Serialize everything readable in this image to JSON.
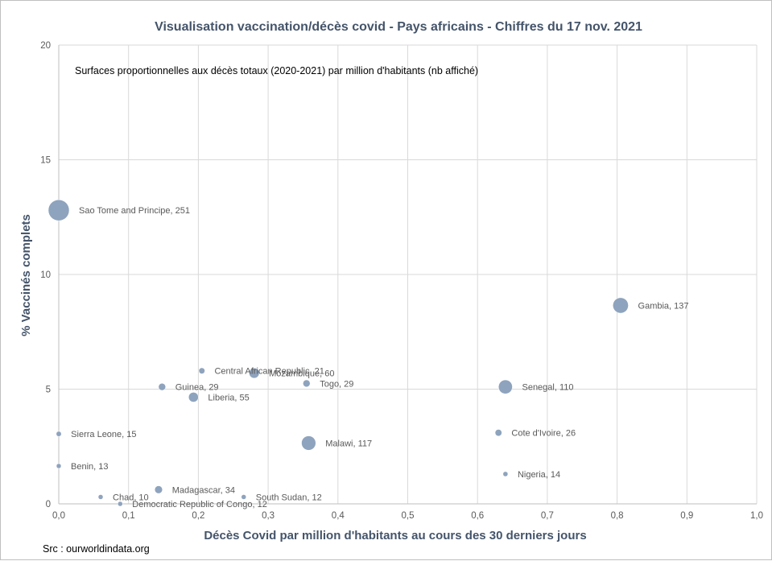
{
  "chart_data": {
    "type": "scatter",
    "title": "Visualisation  vaccination/décès covid - Pays africains - Chiffres du 17  nov. 2021",
    "subtitle": "Surfaces proportionnelles aux décès totaux (2020-2021) par million d'habitants (nb affiché)",
    "xlabel": "Décès Covid par million d'habitants  au cours des 30 derniers jours",
    "ylabel": "% Vaccinés complets",
    "xlim": [
      0,
      1
    ],
    "ylim": [
      0,
      20
    ],
    "x_ticks": [
      "0,0",
      "0,1",
      "0,2",
      "0,3",
      "0,4",
      "0,5",
      "0,6",
      "0,7",
      "0,8",
      "0,9",
      "1,0"
    ],
    "y_ticks": [
      "0",
      "5",
      "10",
      "15",
      "20"
    ],
    "grid": true,
    "bubble_color": "#8ea3bd",
    "text_color": "#44546a",
    "source": "Src : ourworldindata.org",
    "points": [
      {
        "label": "Sao Tome and Principe, 251",
        "x": 0.0,
        "y": 12.8,
        "size": 251
      },
      {
        "label": "Gambia, 137",
        "x": 0.805,
        "y": 8.65,
        "size": 137
      },
      {
        "label": "Central African Republic, 21",
        "x": 0.205,
        "y": 5.8,
        "size": 21
      },
      {
        "label": "Mozambique, 60",
        "x": 0.28,
        "y": 5.7,
        "size": 60
      },
      {
        "label": "Guinea, 29",
        "x": 0.148,
        "y": 5.1,
        "size": 29
      },
      {
        "label": "Togo, 29",
        "x": 0.355,
        "y": 5.25,
        "size": 29
      },
      {
        "label": "Liberia, 55",
        "x": 0.193,
        "y": 4.65,
        "size": 55
      },
      {
        "label": "Senegal, 110",
        "x": 0.64,
        "y": 5.1,
        "size": 110
      },
      {
        "label": "Sierra Leone, 15",
        "x": 0.0,
        "y": 3.05,
        "size": 15
      },
      {
        "label": "Malawi, 117",
        "x": 0.358,
        "y": 2.65,
        "size": 117
      },
      {
        "label": "Cote d'Ivoire, 26",
        "x": 0.63,
        "y": 3.1,
        "size": 26
      },
      {
        "label": "Benin, 13",
        "x": 0.0,
        "y": 1.65,
        "size": 13
      },
      {
        "label": "Nigeria, 14",
        "x": 0.64,
        "y": 1.3,
        "size": 14
      },
      {
        "label": "Madagascar, 34",
        "x": 0.143,
        "y": 0.62,
        "size": 34
      },
      {
        "label": "Chad, 10",
        "x": 0.06,
        "y": 0.3,
        "size": 10
      },
      {
        "label": "South Sudan, 12",
        "x": 0.265,
        "y": 0.3,
        "size": 12
      },
      {
        "label": "Democratic Republic of Congo, 12",
        "x": 0.088,
        "y": 0.0,
        "size": 12
      }
    ]
  }
}
